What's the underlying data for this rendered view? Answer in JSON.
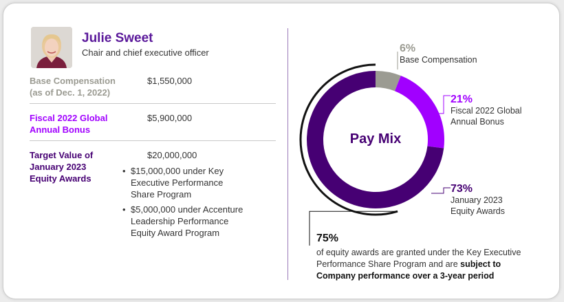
{
  "profile": {
    "name": "Julie Sweet",
    "role": "Chair and chief executive officer"
  },
  "rows": [
    {
      "label_line1": "Base Compensation",
      "label_line2": "(as of Dec. 1, 2022)",
      "value": "$1,550,000",
      "color": "#9b9b92"
    },
    {
      "label_line1": "Fiscal 2022 Global",
      "label_line2": "Annual Bonus",
      "value": "$5,900,000",
      "color": "#a100ff"
    },
    {
      "label_line1": "Target Value of",
      "label_line2": "January 2023",
      "label_line3": "Equity Awards",
      "value": "$20,000,000",
      "color": "#460073",
      "bullets": [
        "$15,000,000 under Key Executive Performance Share Program",
        "$5,000,000 under Accenture Leadership Performance Equity Award Program"
      ]
    }
  ],
  "chart_data": {
    "type": "pie",
    "title": "Pay Mix",
    "slices": [
      {
        "value": 6,
        "label": "6%",
        "caption_line1": "Base Compensation",
        "caption_line2": "",
        "color": "#9b9b92"
      },
      {
        "value": 21,
        "label": "21%",
        "caption_line1": "Fiscal 2022 Global",
        "caption_line2": "Annual Bonus",
        "color": "#a100ff"
      },
      {
        "value": 73,
        "label": "73%",
        "caption_line1": "January 2023",
        "caption_line2": "Equity Awards",
        "color": "#460073"
      }
    ],
    "callout": {
      "value": 75,
      "label": "75%",
      "text": "of equity awards are granted under the Key Executive Performance Share Program and are ",
      "bold_text": "subject to Company performance over a 3-year period"
    }
  }
}
